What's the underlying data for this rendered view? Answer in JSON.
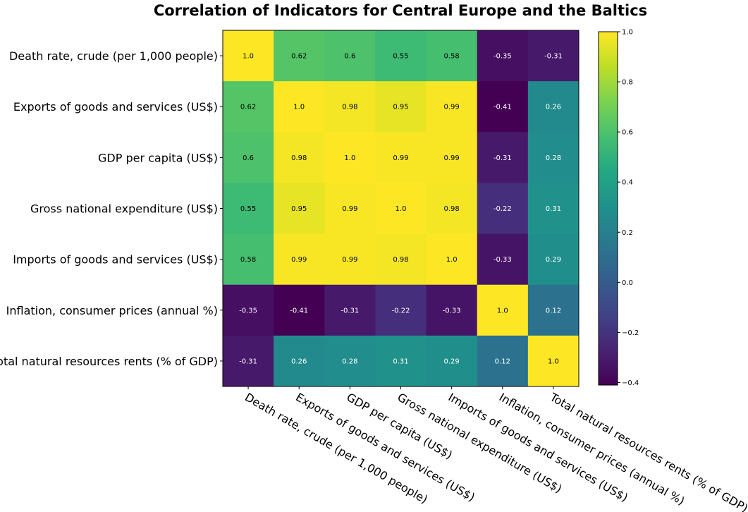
{
  "chart_data": {
    "type": "heatmap",
    "title": "Correlation of Indicators for Central Europe and the Baltics",
    "labels": [
      "Death rate, crude (per 1,000 people)",
      "Exports of goods and services (US$)",
      "GDP per capita (US$)",
      "Gross national expenditure (US$)",
      "Imports of goods and services (US$)",
      "Inflation, consumer prices (annual %)",
      "Total natural resources rents (% of GDP)"
    ],
    "matrix": [
      [
        1.0,
        0.62,
        0.6,
        0.55,
        0.58,
        -0.35,
        -0.31
      ],
      [
        0.62,
        1.0,
        0.98,
        0.95,
        0.99,
        -0.41,
        0.26
      ],
      [
        0.6,
        0.98,
        1.0,
        0.99,
        0.99,
        -0.31,
        0.28
      ],
      [
        0.55,
        0.95,
        0.99,
        1.0,
        0.98,
        -0.22,
        0.31
      ],
      [
        0.58,
        0.99,
        0.99,
        0.98,
        1.0,
        -0.33,
        0.29
      ],
      [
        -0.35,
        -0.41,
        -0.31,
        -0.22,
        -0.33,
        1.0,
        0.12
      ],
      [
        -0.31,
        0.26,
        0.28,
        0.31,
        0.29,
        0.12,
        1.0
      ]
    ],
    "value_labels": [
      [
        "1.0",
        "0.62",
        "0.6",
        "0.55",
        "0.58",
        "-0.35",
        "-0.31"
      ],
      [
        "0.62",
        "1.0",
        "0.98",
        "0.95",
        "0.99",
        "-0.41",
        "0.26"
      ],
      [
        "0.6",
        "0.98",
        "1.0",
        "0.99",
        "0.99",
        "-0.31",
        "0.28"
      ],
      [
        "0.55",
        "0.95",
        "0.99",
        "1.0",
        "0.98",
        "-0.22",
        "0.31"
      ],
      [
        "0.58",
        "0.99",
        "0.99",
        "0.98",
        "1.0",
        "-0.33",
        "0.29"
      ],
      [
        "-0.35",
        "-0.41",
        "-0.31",
        "-0.22",
        "-0.33",
        "1.0",
        "0.12"
      ],
      [
        "-0.31",
        "0.26",
        "0.28",
        "0.31",
        "0.29",
        "0.12",
        "1.0"
      ]
    ],
    "colormap": "viridis",
    "vmin": -0.41,
    "vmax": 1.0,
    "colorbar_ticks": [
      1.0,
      0.8,
      0.6,
      0.4,
      0.2,
      0.0,
      -0.2,
      -0.4
    ],
    "colorbar_tick_labels": [
      "1.0",
      "0.8",
      "0.6",
      "0.4",
      "0.2",
      "0.0",
      "−0.2",
      "−0.4"
    ],
    "grid": false,
    "legend": "colorbar-right"
  }
}
